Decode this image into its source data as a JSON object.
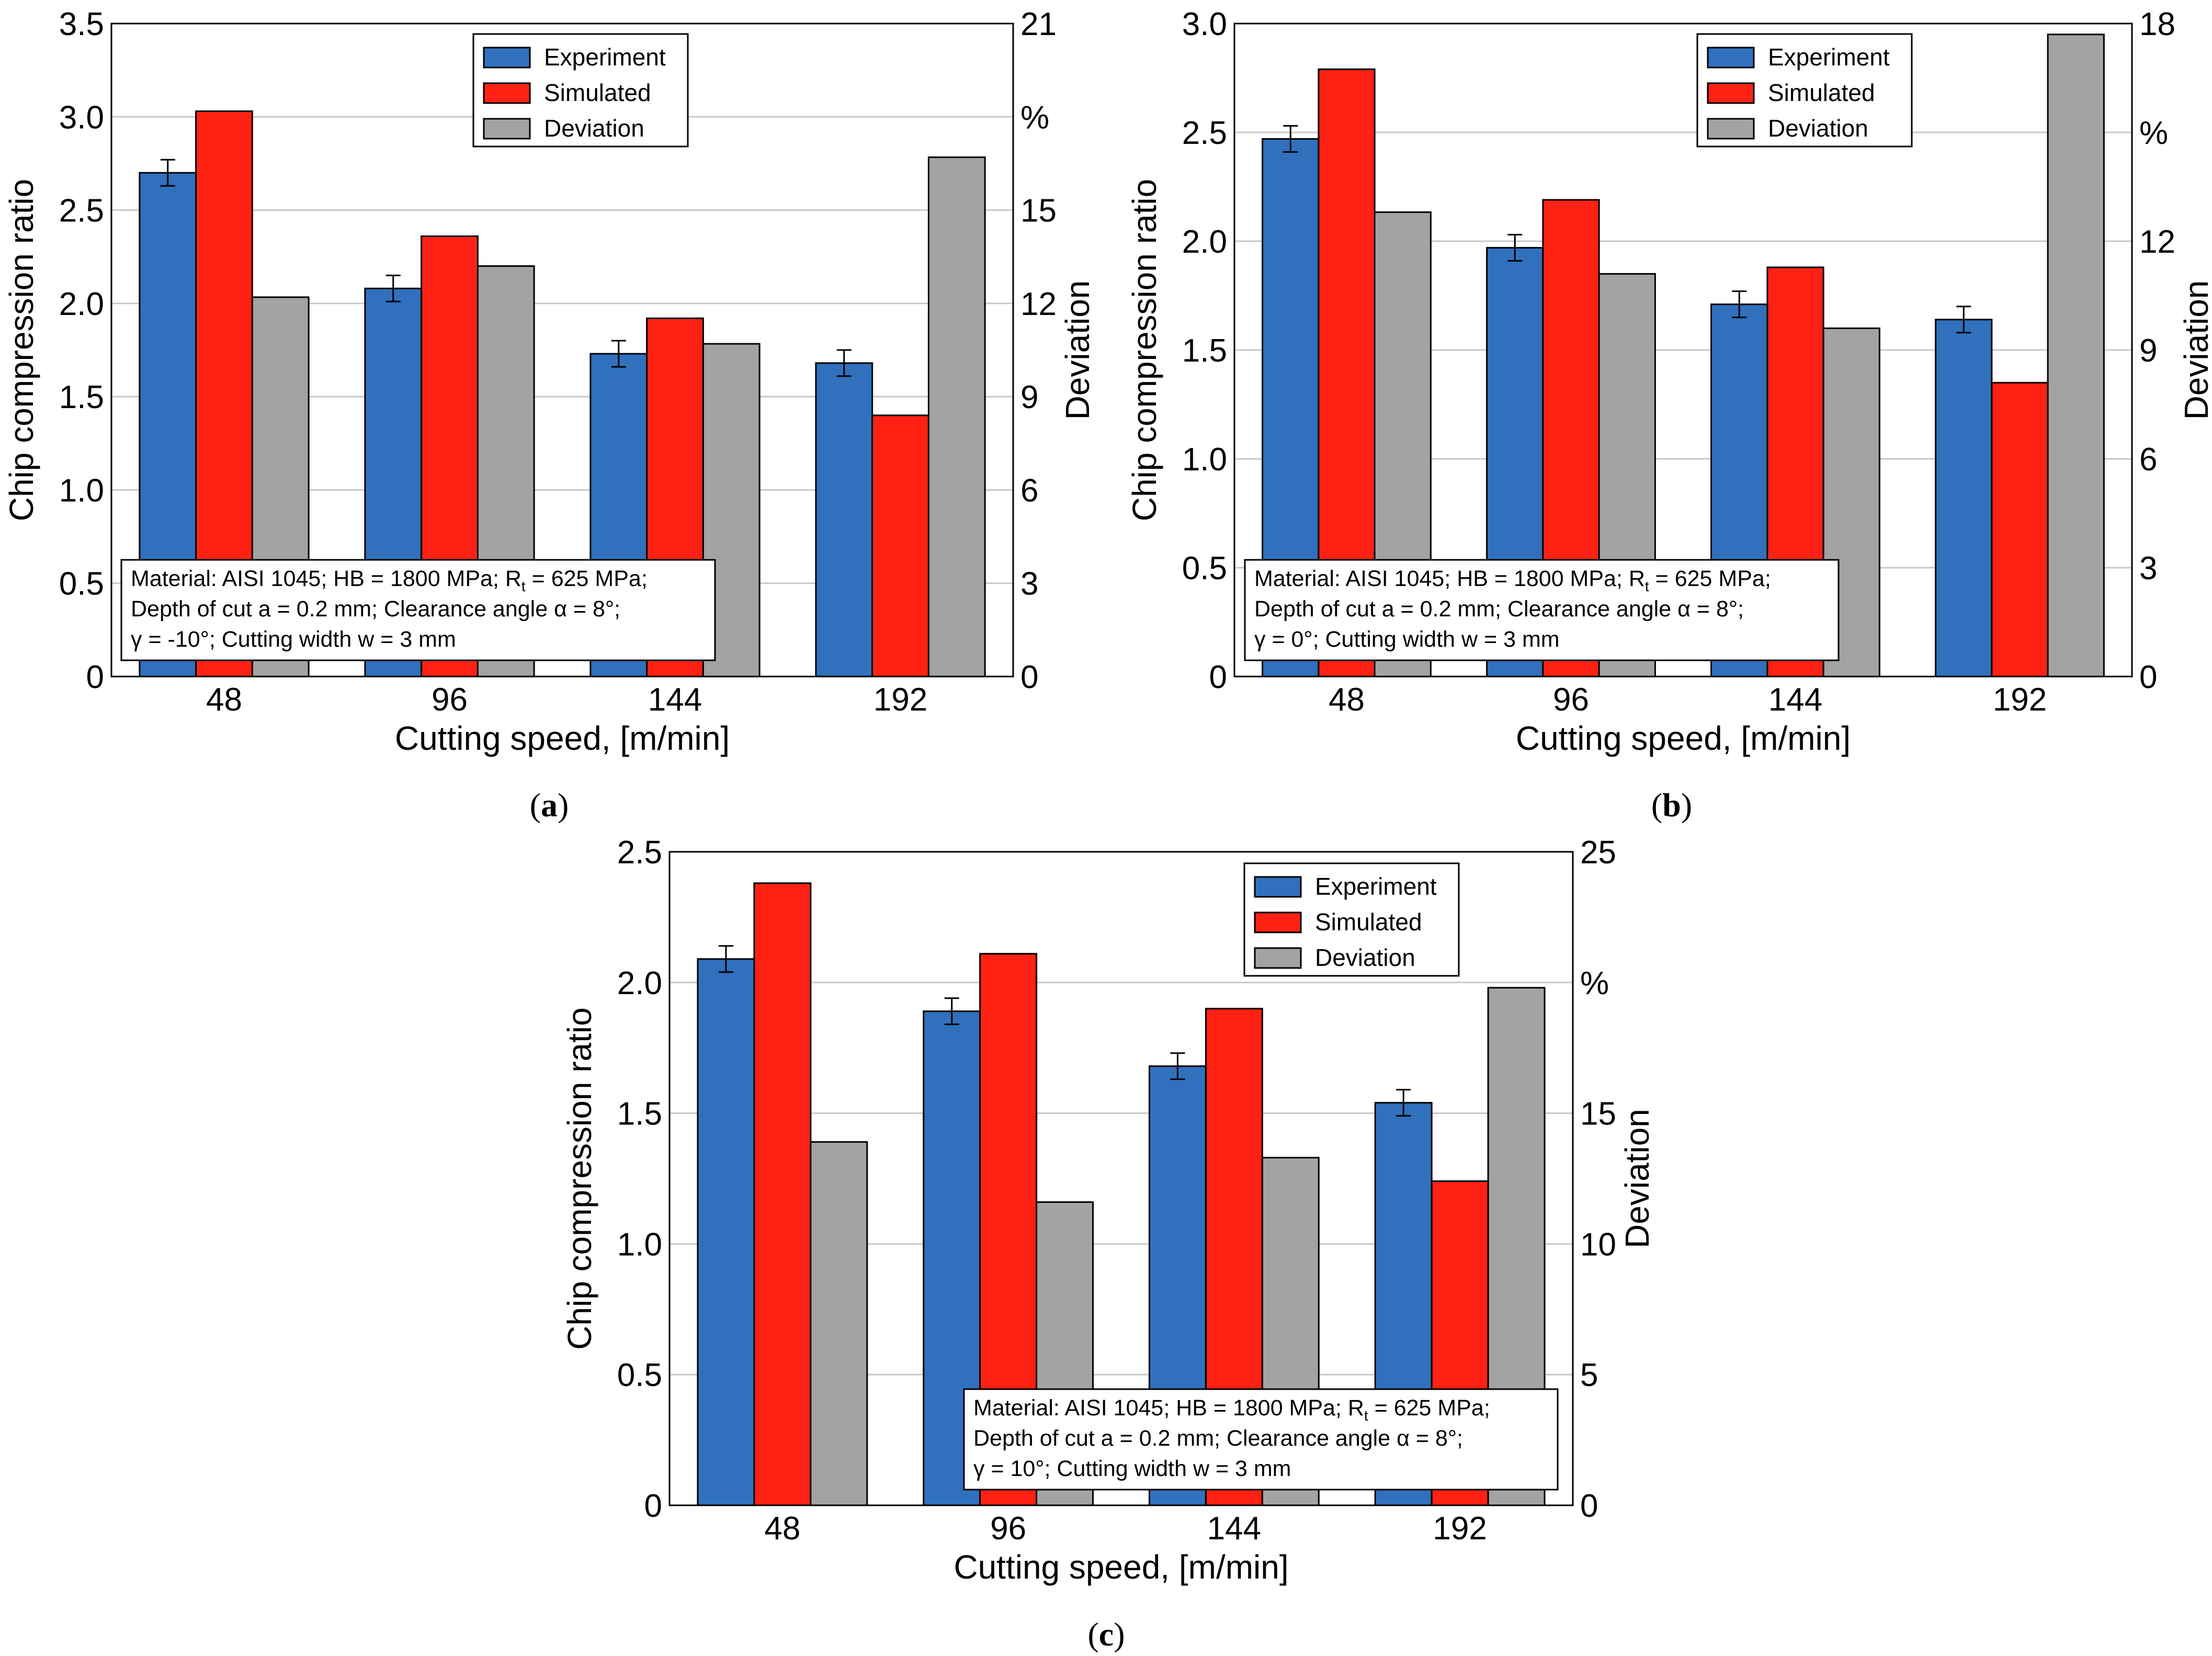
{
  "colors": {
    "experiment": "#3170BD",
    "simulated": "#FF2114",
    "deviation": "#A3A3A3",
    "grid": "#C8C8C8"
  },
  "chart_data": [
    {
      "type": "bar",
      "panel": "a",
      "caption": {
        "open": "(",
        "letter": "a",
        "close": ")"
      },
      "categories": [
        "48",
        "96",
        "144",
        "192"
      ],
      "xlabel": "Cutting speed, [m/min]",
      "ylabel": "Chip compression ratio",
      "y2label": "Deviation",
      "y2unit": "%",
      "ylim": [
        0,
        3.5
      ],
      "yticks": [
        "0",
        "0.5",
        "1.0",
        "1.5",
        "2.0",
        "2.5",
        "3.0",
        "3.5"
      ],
      "y2lim": [
        0,
        21
      ],
      "y2ticks": [
        "0",
        "3",
        "6",
        "9",
        "12",
        "15",
        "",
        "21"
      ],
      "legend": [
        "Experiment",
        "Simulated",
        "Deviation"
      ],
      "series": [
        {
          "name": "Experiment",
          "axis": "left",
          "values": [
            2.7,
            2.08,
            1.73,
            1.68
          ],
          "error": [
            0.07,
            0.07,
            0.07,
            0.07
          ]
        },
        {
          "name": "Simulated",
          "axis": "left",
          "values": [
            3.03,
            2.36,
            1.92,
            1.4
          ]
        },
        {
          "name": "Deviation",
          "axis": "right",
          "values": [
            12.2,
            13.2,
            10.7,
            16.7
          ]
        }
      ],
      "note": [
        {
          "parts": [
            {
              "t": "Material: AISI 1045; HB = 1800 MPa; R"
            },
            {
              "t": "t",
              "sub": true
            },
            {
              "t": " = 625 MPa;"
            }
          ]
        },
        {
          "parts": [
            {
              "t": "Depth of cut a = 0.2 mm; Clearance angle α = 8°;"
            }
          ]
        },
        {
          "parts": [
            {
              "t": "γ = -10°; Cutting width w = 3 mm"
            }
          ]
        }
      ]
    },
    {
      "type": "bar",
      "panel": "b",
      "caption": {
        "open": "(",
        "letter": "b",
        "close": ")"
      },
      "categories": [
        "48",
        "96",
        "144",
        "192"
      ],
      "xlabel": "Cutting speed, [m/min]",
      "ylabel": "Chip compression ratio",
      "y2label": "Deviation",
      "y2unit": "%",
      "ylim": [
        0,
        3.0
      ],
      "yticks": [
        "0",
        "0.5",
        "1.0",
        "1.5",
        "2.0",
        "2.5",
        "3.0"
      ],
      "y2lim": [
        0,
        18
      ],
      "y2ticks": [
        "0",
        "3",
        "6",
        "9",
        "12",
        "",
        "18"
      ],
      "legend": [
        "Experiment",
        "Simulated",
        "Deviation"
      ],
      "series": [
        {
          "name": "Experiment",
          "axis": "left",
          "values": [
            2.47,
            1.97,
            1.71,
            1.64
          ],
          "error": [
            0.06,
            0.06,
            0.06,
            0.06
          ]
        },
        {
          "name": "Simulated",
          "axis": "left",
          "values": [
            2.79,
            2.19,
            1.88,
            1.35
          ]
        },
        {
          "name": "Deviation",
          "axis": "right",
          "values": [
            12.8,
            11.1,
            9.6,
            17.7
          ]
        }
      ],
      "note": [
        {
          "parts": [
            {
              "t": "Material: AISI 1045; HB = 1800 MPa; R"
            },
            {
              "t": "t",
              "sub": true
            },
            {
              "t": " = 625 MPa;"
            }
          ]
        },
        {
          "parts": [
            {
              "t": "Depth of cut a = 0.2 mm; Clearance angle α = 8°;"
            }
          ]
        },
        {
          "parts": [
            {
              "t": "γ = 0°; Cutting width w = 3 mm"
            }
          ]
        }
      ]
    },
    {
      "type": "bar",
      "panel": "c",
      "caption": {
        "open": "(",
        "letter": "c",
        "close": ")"
      },
      "categories": [
        "48",
        "96",
        "144",
        "192"
      ],
      "xlabel": "Cutting speed, [m/min]",
      "ylabel": "Chip compression ratio",
      "y2label": "Deviation",
      "y2unit": "%",
      "ylim": [
        0,
        2.5
      ],
      "yticks": [
        "0",
        "0.5",
        "1.0",
        "1.5",
        "2.0",
        "2.5"
      ],
      "y2lim": [
        0,
        25
      ],
      "y2ticks": [
        "0",
        "5",
        "10",
        "15",
        "",
        "25"
      ],
      "legend": [
        "Experiment",
        "Simulated",
        "Deviation"
      ],
      "series": [
        {
          "name": "Experiment",
          "axis": "left",
          "values": [
            2.09,
            1.89,
            1.68,
            1.54
          ],
          "error": [
            0.05,
            0.05,
            0.05,
            0.05
          ]
        },
        {
          "name": "Simulated",
          "axis": "left",
          "values": [
            2.38,
            2.11,
            1.9,
            1.24
          ]
        },
        {
          "name": "Deviation",
          "axis": "right",
          "values": [
            13.9,
            11.6,
            13.3,
            19.8
          ]
        }
      ],
      "note": [
        {
          "parts": [
            {
              "t": "Material: AISI 1045; HB = 1800 MPa; R"
            },
            {
              "t": "t",
              "sub": true
            },
            {
              "t": " = 625 MPa;"
            }
          ]
        },
        {
          "parts": [
            {
              "t": "Depth of cut a = 0.2 mm; Clearance angle α = 8°;"
            }
          ]
        },
        {
          "parts": [
            {
              "t": "γ = 10°; Cutting width w = 3 mm"
            }
          ]
        }
      ]
    }
  ]
}
